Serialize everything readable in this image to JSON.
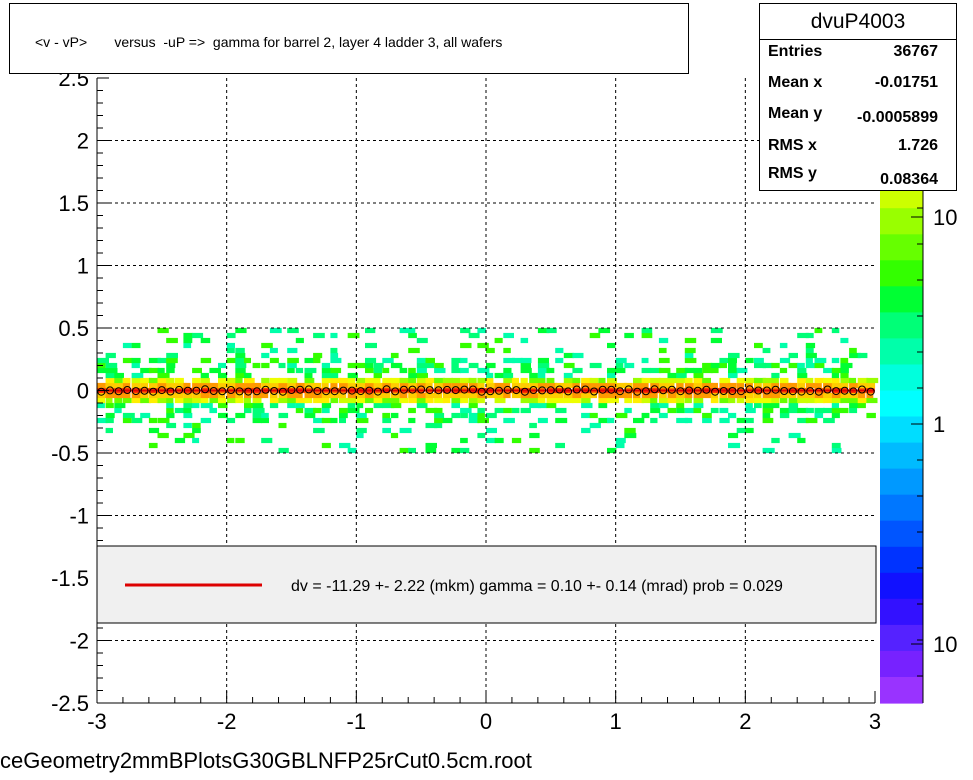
{
  "title": "<v - vP>       versus  -uP =>  gamma for barrel 2, layer 4 ladder 3, all wafers",
  "stats": {
    "name": "dvuP4003",
    "rows": [
      {
        "key": "Entries",
        "value": "36767"
      },
      {
        "key": "Mean x",
        "value": "-0.01751"
      },
      {
        "key": "Mean y",
        "value": "-0.0005899"
      },
      {
        "key": "RMS x",
        "value": "1.726"
      },
      {
        "key": "RMS y",
        "value": "0.08364"
      }
    ]
  },
  "legend": {
    "text": "dv =  -11.29 +-  2.22 (mkm) gamma =    0.10 +-  0.14 (mrad) prob = 0.029",
    "line_color": "#dd0000"
  },
  "filename": "ceGeometry2mmBPlotsG30GBLNFP25rCut0.5cm.root",
  "chart_data": {
    "type": "heatmap",
    "xlim": [
      -3,
      3
    ],
    "ylim": [
      -2.5,
      2.5
    ],
    "x_ticks": [
      "-3",
      "-2",
      "-1",
      "0",
      "1",
      "2",
      "3"
    ],
    "y_ticks": [
      "-2.5",
      "-2",
      "-1.5",
      "-1",
      "-0.5",
      "0",
      "0.5",
      "1",
      "1.5",
      "2",
      "2.5"
    ],
    "grid": true,
    "colorbar_labels": [
      "10",
      "1",
      "10"
    ],
    "colorbar_colors": [
      "#ff9900",
      "#ffcc00",
      "#ffee00",
      "#eeff00",
      "#ccff00",
      "#99ff00",
      "#66ff00",
      "#33ff00",
      "#00ff33",
      "#00ff77",
      "#00ffaa",
      "#00ffdd",
      "#00ffff",
      "#00ddff",
      "#00bbff",
      "#0099ff",
      "#0077ff",
      "#0055ff",
      "#0033ff",
      "#1111ff",
      "#3311ff",
      "#5522ff",
      "#7722ff",
      "#9933ff"
    ],
    "profile_mean": 0.0,
    "profile_points": 90,
    "band_core_halfwidth": 0.05,
    "band_outer_halfwidth": 0.5,
    "fit_color": "#dd0000"
  }
}
